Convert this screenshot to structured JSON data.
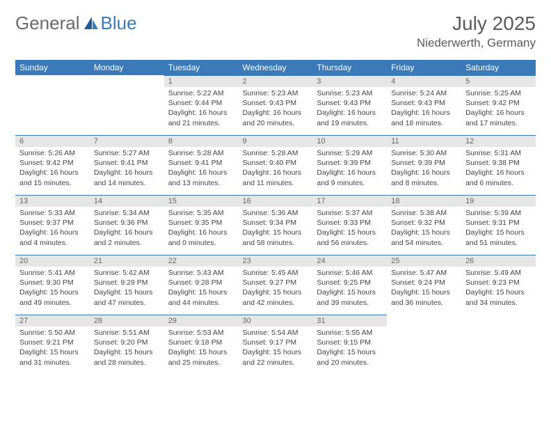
{
  "logo": {
    "text1": "General",
    "text2": "Blue"
  },
  "title": "July 2025",
  "location": "Niederwerth, Germany",
  "colors": {
    "header_bg": "#3a7ab8",
    "header_text": "#ffffff",
    "daynum_bg": "#e6e6e6",
    "daynum_border": "#3a7ab8",
    "body_bg": "#ffffff",
    "text": "#444444"
  },
  "dow": [
    "Sunday",
    "Monday",
    "Tuesday",
    "Wednesday",
    "Thursday",
    "Friday",
    "Saturday"
  ],
  "weeks": [
    [
      null,
      null,
      {
        "n": "1",
        "sr": "Sunrise: 5:22 AM",
        "ss": "Sunset: 9:44 PM",
        "dl1": "Daylight: 16 hours",
        "dl2": "and 21 minutes."
      },
      {
        "n": "2",
        "sr": "Sunrise: 5:23 AM",
        "ss": "Sunset: 9:43 PM",
        "dl1": "Daylight: 16 hours",
        "dl2": "and 20 minutes."
      },
      {
        "n": "3",
        "sr": "Sunrise: 5:23 AM",
        "ss": "Sunset: 9:43 PM",
        "dl1": "Daylight: 16 hours",
        "dl2": "and 19 minutes."
      },
      {
        "n": "4",
        "sr": "Sunrise: 5:24 AM",
        "ss": "Sunset: 9:43 PM",
        "dl1": "Daylight: 16 hours",
        "dl2": "and 18 minutes."
      },
      {
        "n": "5",
        "sr": "Sunrise: 5:25 AM",
        "ss": "Sunset: 9:42 PM",
        "dl1": "Daylight: 16 hours",
        "dl2": "and 17 minutes."
      }
    ],
    [
      {
        "n": "6",
        "sr": "Sunrise: 5:26 AM",
        "ss": "Sunset: 9:42 PM",
        "dl1": "Daylight: 16 hours",
        "dl2": "and 15 minutes."
      },
      {
        "n": "7",
        "sr": "Sunrise: 5:27 AM",
        "ss": "Sunset: 9:41 PM",
        "dl1": "Daylight: 16 hours",
        "dl2": "and 14 minutes."
      },
      {
        "n": "8",
        "sr": "Sunrise: 5:28 AM",
        "ss": "Sunset: 9:41 PM",
        "dl1": "Daylight: 16 hours",
        "dl2": "and 13 minutes."
      },
      {
        "n": "9",
        "sr": "Sunrise: 5:28 AM",
        "ss": "Sunset: 9:40 PM",
        "dl1": "Daylight: 16 hours",
        "dl2": "and 11 minutes."
      },
      {
        "n": "10",
        "sr": "Sunrise: 5:29 AM",
        "ss": "Sunset: 9:39 PM",
        "dl1": "Daylight: 16 hours",
        "dl2": "and 9 minutes."
      },
      {
        "n": "11",
        "sr": "Sunrise: 5:30 AM",
        "ss": "Sunset: 9:39 PM",
        "dl1": "Daylight: 16 hours",
        "dl2": "and 8 minutes."
      },
      {
        "n": "12",
        "sr": "Sunrise: 5:31 AM",
        "ss": "Sunset: 9:38 PM",
        "dl1": "Daylight: 16 hours",
        "dl2": "and 6 minutes."
      }
    ],
    [
      {
        "n": "13",
        "sr": "Sunrise: 5:33 AM",
        "ss": "Sunset: 9:37 PM",
        "dl1": "Daylight: 16 hours",
        "dl2": "and 4 minutes."
      },
      {
        "n": "14",
        "sr": "Sunrise: 5:34 AM",
        "ss": "Sunset: 9:36 PM",
        "dl1": "Daylight: 16 hours",
        "dl2": "and 2 minutes."
      },
      {
        "n": "15",
        "sr": "Sunrise: 5:35 AM",
        "ss": "Sunset: 9:35 PM",
        "dl1": "Daylight: 16 hours",
        "dl2": "and 0 minutes."
      },
      {
        "n": "16",
        "sr": "Sunrise: 5:36 AM",
        "ss": "Sunset: 9:34 PM",
        "dl1": "Daylight: 15 hours",
        "dl2": "and 58 minutes."
      },
      {
        "n": "17",
        "sr": "Sunrise: 5:37 AM",
        "ss": "Sunset: 9:33 PM",
        "dl1": "Daylight: 15 hours",
        "dl2": "and 56 minutes."
      },
      {
        "n": "18",
        "sr": "Sunrise: 5:38 AM",
        "ss": "Sunset: 9:32 PM",
        "dl1": "Daylight: 15 hours",
        "dl2": "and 54 minutes."
      },
      {
        "n": "19",
        "sr": "Sunrise: 5:39 AM",
        "ss": "Sunset: 9:31 PM",
        "dl1": "Daylight: 15 hours",
        "dl2": "and 51 minutes."
      }
    ],
    [
      {
        "n": "20",
        "sr": "Sunrise: 5:41 AM",
        "ss": "Sunset: 9:30 PM",
        "dl1": "Daylight: 15 hours",
        "dl2": "and 49 minutes."
      },
      {
        "n": "21",
        "sr": "Sunrise: 5:42 AM",
        "ss": "Sunset: 9:29 PM",
        "dl1": "Daylight: 15 hours",
        "dl2": "and 47 minutes."
      },
      {
        "n": "22",
        "sr": "Sunrise: 5:43 AM",
        "ss": "Sunset: 9:28 PM",
        "dl1": "Daylight: 15 hours",
        "dl2": "and 44 minutes."
      },
      {
        "n": "23",
        "sr": "Sunrise: 5:45 AM",
        "ss": "Sunset: 9:27 PM",
        "dl1": "Daylight: 15 hours",
        "dl2": "and 42 minutes."
      },
      {
        "n": "24",
        "sr": "Sunrise: 5:46 AM",
        "ss": "Sunset: 9:25 PM",
        "dl1": "Daylight: 15 hours",
        "dl2": "and 39 minutes."
      },
      {
        "n": "25",
        "sr": "Sunrise: 5:47 AM",
        "ss": "Sunset: 9:24 PM",
        "dl1": "Daylight: 15 hours",
        "dl2": "and 36 minutes."
      },
      {
        "n": "26",
        "sr": "Sunrise: 5:49 AM",
        "ss": "Sunset: 9:23 PM",
        "dl1": "Daylight: 15 hours",
        "dl2": "and 34 minutes."
      }
    ],
    [
      {
        "n": "27",
        "sr": "Sunrise: 5:50 AM",
        "ss": "Sunset: 9:21 PM",
        "dl1": "Daylight: 15 hours",
        "dl2": "and 31 minutes."
      },
      {
        "n": "28",
        "sr": "Sunrise: 5:51 AM",
        "ss": "Sunset: 9:20 PM",
        "dl1": "Daylight: 15 hours",
        "dl2": "and 28 minutes."
      },
      {
        "n": "29",
        "sr": "Sunrise: 5:53 AM",
        "ss": "Sunset: 9:18 PM",
        "dl1": "Daylight: 15 hours",
        "dl2": "and 25 minutes."
      },
      {
        "n": "30",
        "sr": "Sunrise: 5:54 AM",
        "ss": "Sunset: 9:17 PM",
        "dl1": "Daylight: 15 hours",
        "dl2": "and 22 minutes."
      },
      {
        "n": "31",
        "sr": "Sunrise: 5:55 AM",
        "ss": "Sunset: 9:15 PM",
        "dl1": "Daylight: 15 hours",
        "dl2": "and 20 minutes."
      },
      null,
      null
    ]
  ]
}
